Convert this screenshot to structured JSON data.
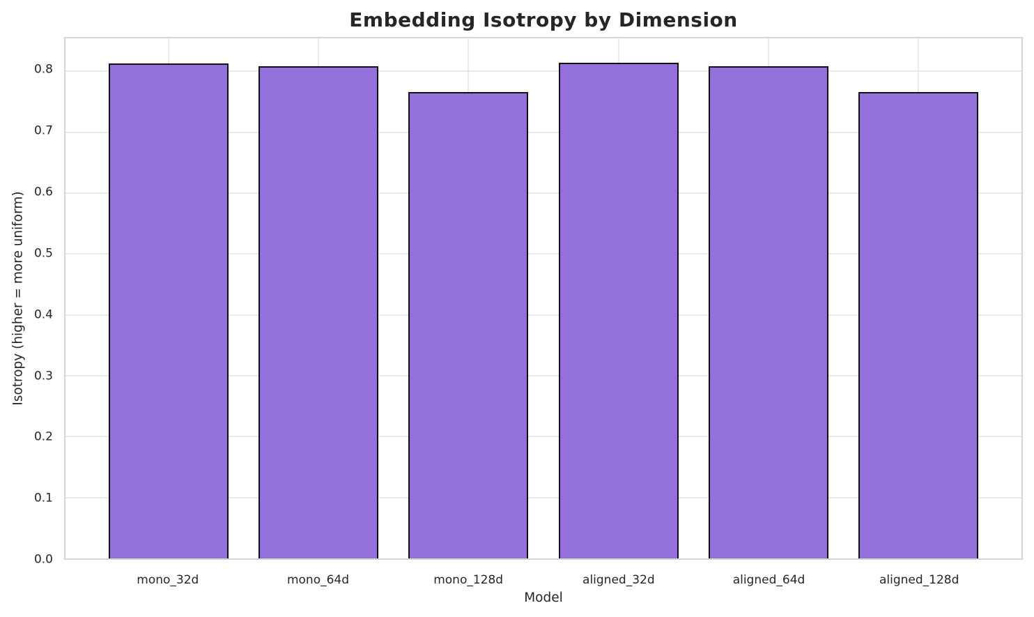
{
  "chart_data": {
    "type": "bar",
    "title": "Embedding Isotropy by Dimension",
    "xlabel": "Model",
    "ylabel": "Isotropy (higher = more uniform)",
    "categories": [
      "mono_32d",
      "mono_64d",
      "mono_128d",
      "aligned_32d",
      "aligned_64d",
      "aligned_128d"
    ],
    "values": [
      0.813,
      0.808,
      0.766,
      0.814,
      0.808,
      0.766
    ],
    "ylim": [
      0,
      0.854
    ],
    "xlim": [
      -0.69,
      5.69
    ],
    "bar_width": 0.8,
    "yticks": [
      0.0,
      0.1,
      0.2,
      0.3,
      0.4,
      0.5,
      0.6,
      0.7,
      0.8
    ],
    "ytick_labels": [
      "0.0",
      "0.1",
      "0.2",
      "0.3",
      "0.4",
      "0.5",
      "0.6",
      "0.7",
      "0.8"
    ],
    "grid": true,
    "legend_position": "none",
    "colors": {
      "bar_fill": "#9370DB",
      "bar_edge": "#111111",
      "grid_line": "#e9e9e9",
      "spine": "#d5d5d5",
      "text": "#262626",
      "background": "#ffffff"
    }
  }
}
